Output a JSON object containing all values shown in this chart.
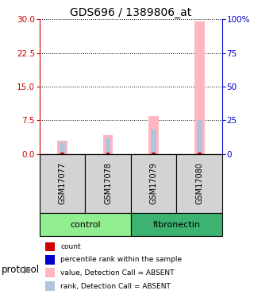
{
  "title": "GDS696 / 1389806_at",
  "samples": [
    "GSM17077",
    "GSM17078",
    "GSM17079",
    "GSM17080"
  ],
  "left_ylim": [
    0,
    30
  ],
  "right_ylim": [
    0,
    100
  ],
  "left_yticks": [
    0,
    7.5,
    15,
    22.5,
    30
  ],
  "right_yticks": [
    0,
    25,
    50,
    75,
    100
  ],
  "right_yticklabels": [
    "0",
    "25",
    "50",
    "75",
    "100%"
  ],
  "left_color": "#CC0000",
  "right_color": "#0000CC",
  "value_bars": [
    3.0,
    4.2,
    8.5,
    29.5
  ],
  "rank_bars": [
    9.0,
    12.0,
    18.0,
    25.0
  ],
  "value_bar_color": "#FFB6C1",
  "rank_bar_color": "#B0C4DE",
  "count_color": "#CC0000",
  "count_values": [
    0.4,
    0.4,
    0.4,
    0.4
  ],
  "legend_items": [
    {
      "color": "#CC0000",
      "label": "count"
    },
    {
      "color": "#0000CC",
      "label": "percentile rank within the sample"
    },
    {
      "color": "#FFB6C1",
      "label": "value, Detection Call = ABSENT"
    },
    {
      "color": "#B0C4DE",
      "label": "rank, Detection Call = ABSENT"
    }
  ],
  "group_label": "protocol",
  "group_ranges": [
    [
      "control",
      0,
      1
    ],
    [
      "fibronectin",
      2,
      3
    ]
  ],
  "group_colors": {
    "control": "#90EE90",
    "fibronectin": "#3CB371"
  },
  "sample_bg": "#D3D3D3",
  "title_fontsize": 10
}
